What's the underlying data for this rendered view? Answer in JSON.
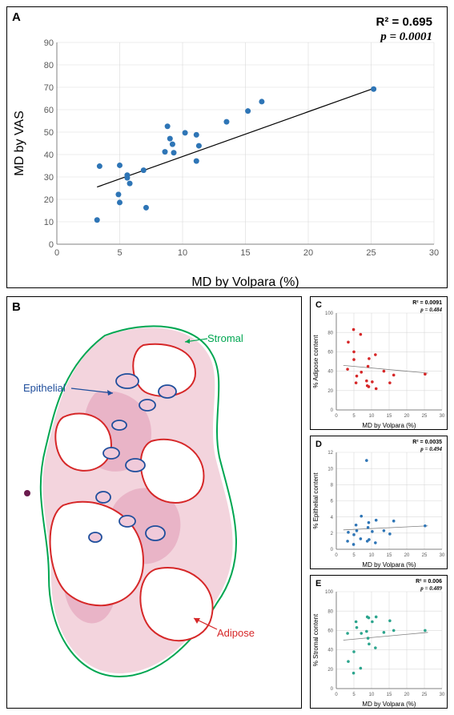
{
  "panelA": {
    "label": "A",
    "type": "scatter",
    "title_r2": "R² = 0.695",
    "title_p": "p = 0.0001",
    "xlabel": "MD by Volpara (%)",
    "ylabel": "MD by VAS",
    "xlim": [
      0,
      30
    ],
    "ylim": [
      0,
      90
    ],
    "xtick_step": 5,
    "ytick_step": 10,
    "marker_color": "#2e75b6",
    "marker_radius": 3.5,
    "line_color": "#000000",
    "line_width": 1.2,
    "background_color": "#ffffff",
    "grid_color": "#bfbfbf",
    "title_fontsize": 15,
    "label_fontsize": 16,
    "tick_fontsize": 11,
    "points": [
      [
        3.2,
        10.8
      ],
      [
        3.4,
        34.8
      ],
      [
        4.9,
        22.2
      ],
      [
        5.0,
        18.6
      ],
      [
        5.0,
        35.2
      ],
      [
        5.6,
        29.6
      ],
      [
        5.6,
        30.8
      ],
      [
        5.8,
        27.1
      ],
      [
        6.9,
        33.0
      ],
      [
        7.1,
        16.3
      ],
      [
        8.6,
        41.2
      ],
      [
        8.8,
        52.6
      ],
      [
        9.0,
        47.1
      ],
      [
        9.2,
        44.6
      ],
      [
        9.3,
        40.8
      ],
      [
        10.2,
        49.7
      ],
      [
        11.1,
        48.8
      ],
      [
        11.1,
        37.1
      ],
      [
        11.3,
        43.9
      ],
      [
        13.5,
        54.6
      ],
      [
        15.2,
        59.4
      ],
      [
        16.3,
        63.6
      ],
      [
        25.2,
        69.2
      ]
    ],
    "fit_line": {
      "x1": 3.2,
      "y1": 25.5,
      "x2": 25.2,
      "y2": 69.5
    }
  },
  "panelB": {
    "label": "B",
    "labels": {
      "stromal": {
        "text": "Stromal",
        "color": "#00a651"
      },
      "epithelial": {
        "text": "Epithelial",
        "color": "#1f4e9c"
      },
      "adipose": {
        "text": "Adipose",
        "color": "#d62728"
      }
    }
  },
  "panelC": {
    "label": "C",
    "type": "scatter",
    "title_r2": "R² = 0.0091",
    "title_p": "p = 0.484",
    "xlabel": "MD by Volpara (%)",
    "ylabel": "% Adipose content",
    "xlim": [
      0,
      30
    ],
    "ylim": [
      0,
      100
    ],
    "xtick_step": 5,
    "ytick_step": 20,
    "marker_color": "#d62728",
    "marker_radius": 1.8,
    "line_color": "#808080",
    "line_width": 0.8,
    "title_fontsize": 7,
    "label_fontsize": 8,
    "tick_fontsize": 6,
    "points": [
      [
        3.2,
        42
      ],
      [
        3.4,
        70
      ],
      [
        4.9,
        83
      ],
      [
        5.0,
        60
      ],
      [
        5.0,
        52
      ],
      [
        5.6,
        28
      ],
      [
        5.8,
        35
      ],
      [
        6.9,
        78
      ],
      [
        7.1,
        39
      ],
      [
        8.6,
        30
      ],
      [
        8.8,
        25
      ],
      [
        9.0,
        45
      ],
      [
        9.2,
        24
      ],
      [
        9.3,
        53
      ],
      [
        10.2,
        29
      ],
      [
        11.1,
        57
      ],
      [
        11.3,
        22
      ],
      [
        13.5,
        40
      ],
      [
        15.2,
        28
      ],
      [
        16.3,
        36
      ],
      [
        25.2,
        37
      ]
    ],
    "fit_line": {
      "x1": 2,
      "y1": 46,
      "x2": 26,
      "y2": 38
    }
  },
  "panelD": {
    "label": "D",
    "type": "scatter",
    "title_r2": "R² = 0.0035",
    "title_p": "p = 0.494",
    "xlabel": "MD by Volpara (%)",
    "ylabel": "% Epithelial content",
    "xlim": [
      0,
      30
    ],
    "ylim": [
      0,
      12
    ],
    "xtick_step": 5,
    "ytick_step": 2,
    "marker_color": "#2e75b6",
    "marker_radius": 1.8,
    "line_color": "#808080",
    "line_width": 0.8,
    "title_fontsize": 7,
    "label_fontsize": 8,
    "tick_fontsize": 6,
    "points": [
      [
        3.2,
        1.0
      ],
      [
        3.4,
        2.1
      ],
      [
        4.9,
        0.6
      ],
      [
        5.0,
        1.8
      ],
      [
        5.6,
        3.0
      ],
      [
        5.8,
        2.3
      ],
      [
        6.9,
        1.3
      ],
      [
        7.1,
        4.1
      ],
      [
        8.6,
        11.0
      ],
      [
        8.8,
        1.0
      ],
      [
        9.0,
        2.7
      ],
      [
        9.2,
        3.3
      ],
      [
        9.3,
        1.2
      ],
      [
        10.2,
        2.2
      ],
      [
        11.1,
        0.8
      ],
      [
        11.3,
        3.6
      ],
      [
        13.5,
        2.3
      ],
      [
        15.2,
        1.9
      ],
      [
        16.3,
        3.5
      ],
      [
        25.2,
        2.9
      ]
    ],
    "fit_line": {
      "x1": 2,
      "y1": 2.4,
      "x2": 26,
      "y2": 2.9
    }
  },
  "panelE": {
    "label": "E",
    "type": "scatter",
    "title_r2": "R² = 0.006",
    "title_p": "p = 0.489",
    "xlabel": "MD by Volpara (%)",
    "ylabel": "% Stromal content",
    "xlim": [
      0,
      30
    ],
    "ylim": [
      0,
      100
    ],
    "xtick_step": 5,
    "ytick_step": 20,
    "marker_color": "#2ca58d",
    "marker_radius": 1.8,
    "line_color": "#808080",
    "line_width": 0.8,
    "title_fontsize": 7,
    "label_fontsize": 8,
    "tick_fontsize": 6,
    "points": [
      [
        3.2,
        57
      ],
      [
        3.4,
        28
      ],
      [
        4.9,
        16
      ],
      [
        5.0,
        38
      ],
      [
        5.6,
        69
      ],
      [
        5.8,
        63
      ],
      [
        6.9,
        21
      ],
      [
        7.1,
        57
      ],
      [
        8.6,
        59
      ],
      [
        8.8,
        74
      ],
      [
        9.0,
        52
      ],
      [
        9.2,
        73
      ],
      [
        9.3,
        46
      ],
      [
        10.2,
        69
      ],
      [
        11.1,
        42
      ],
      [
        11.3,
        74
      ],
      [
        13.5,
        58
      ],
      [
        15.2,
        70
      ],
      [
        16.3,
        60
      ],
      [
        25.2,
        60
      ]
    ],
    "fit_line": {
      "x1": 2,
      "y1": 50,
      "x2": 26,
      "y2": 58
    }
  }
}
